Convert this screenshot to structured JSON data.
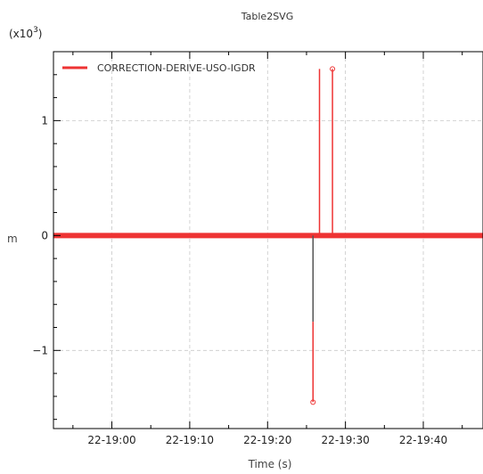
{
  "chart_data": {
    "type": "line",
    "title": "Table2SVG",
    "xlabel": "Time (s)",
    "ylabel": "m",
    "y_multiplier": "(x10",
    "y_multiplier_exp": "3",
    "y_multiplier_close": ")",
    "x_ticks": [
      "22-19:00",
      "22-19:10",
      "22-19:20",
      "22-19:30",
      "22-19:40"
    ],
    "y_ticks": [
      "-1",
      "0",
      "1"
    ],
    "grid": true,
    "legend_position": "top-left",
    "x_range_seconds": [
      -45,
      286
    ],
    "ylim": [
      -1.68,
      1.6
    ],
    "series": [
      {
        "name": "CORRECTION-DERIVE-USO-IGDR",
        "color": "#ee3333",
        "x_seconds": [
          -45,
          155,
          155,
          155,
          155,
          160,
          160,
          170,
          170,
          286
        ],
        "values": [
          0,
          0,
          -0.75,
          -1.45,
          0,
          0,
          1.45,
          1.45,
          0,
          0
        ]
      }
    ]
  }
}
